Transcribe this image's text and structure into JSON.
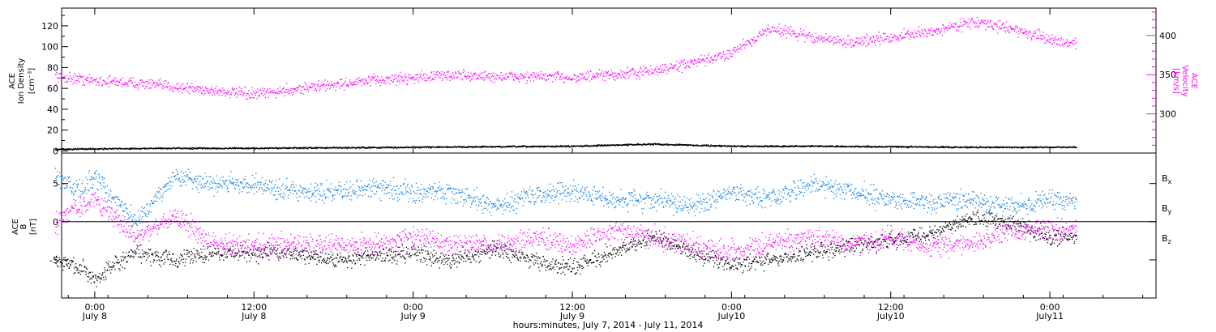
{
  "chart_data": [
    {
      "type": "scatter",
      "panel": "top",
      "ylabel_left": [
        "ACE",
        "Ion Density",
        "[cm⁻³]"
      ],
      "ylabel_right": [
        "ACE",
        "Velocity",
        "[km/s]"
      ],
      "ylim_left": [
        -2,
        137
      ],
      "ylim_right": [
        250,
        435
      ],
      "yticks_left": [
        "0",
        "20",
        "40",
        "60",
        "80",
        "100",
        "120"
      ],
      "yticks_right": [
        "300",
        "350",
        "400"
      ],
      "series": [
        {
          "key": "density",
          "color": "#000000",
          "axis": "left",
          "x_hours": [
            -3,
            0,
            6,
            12,
            18,
            24,
            30,
            36,
            42,
            48,
            54,
            60,
            66,
            74
          ],
          "y": [
            2,
            2.5,
            3,
            3,
            3.5,
            4,
            4.5,
            5,
            7,
            5,
            5,
            4.5,
            4,
            4
          ]
        },
        {
          "key": "velocity",
          "color": "#ff00ff",
          "axis": "right",
          "x_hours": [
            -3,
            0,
            3,
            6,
            9,
            12,
            15,
            18,
            21,
            24,
            27,
            30,
            33,
            36,
            39,
            42,
            45,
            47.5,
            48.5,
            51,
            54,
            57,
            60,
            63,
            66,
            69,
            72,
            74
          ],
          "y": [
            348,
            343,
            340,
            335,
            330,
            325,
            332,
            338,
            343,
            347,
            350,
            348,
            348,
            347,
            350,
            355,
            365,
            375,
            385,
            410,
            398,
            392,
            398,
            405,
            418,
            410,
            395,
            390
          ]
        }
      ]
    },
    {
      "type": "scatter",
      "panel": "bottom",
      "ylabel_left": [
        "ACE",
        "B",
        "[nT]"
      ],
      "ylim": [
        -10,
        9
      ],
      "yticks": [
        "-5",
        "0",
        "5"
      ],
      "series": [
        {
          "key": "Bx",
          "color": "#000000",
          "x_hours": [
            -3,
            -1,
            0,
            3,
            6,
            9,
            12,
            15,
            18,
            21,
            24,
            27,
            30,
            33,
            36,
            39,
            42,
            45,
            48,
            51,
            54,
            57,
            60,
            63,
            66,
            69,
            72,
            74
          ],
          "y": [
            -5,
            -6,
            -7.5,
            -4,
            -5,
            -4,
            -4,
            -4,
            -5,
            -4.5,
            -4,
            -5,
            -3.5,
            -5,
            -6,
            -4,
            -2,
            -4,
            -5.5,
            -5,
            -4,
            -3,
            -2.5,
            -1.5,
            0.5,
            0,
            -2,
            -2
          ]
        },
        {
          "key": "By",
          "color": "#1080e0",
          "x_hours": [
            -3,
            -1,
            0,
            3,
            6,
            9,
            12,
            15,
            18,
            21,
            24,
            27,
            30,
            33,
            36,
            39,
            42,
            45,
            48,
            51,
            54,
            57,
            60,
            63,
            66,
            69,
            72,
            74
          ],
          "y": [
            6,
            4,
            6,
            0,
            6,
            5,
            5,
            4,
            4,
            4.5,
            4,
            4,
            2,
            3.5,
            4,
            3,
            3,
            2,
            4,
            3,
            5,
            4,
            3,
            2.5,
            3,
            2,
            3,
            2.5
          ]
        },
        {
          "key": "Bz",
          "color": "#ff00ff",
          "x_hours": [
            -3,
            -1,
            0,
            3,
            6,
            9,
            12,
            15,
            18,
            21,
            24,
            27,
            30,
            33,
            36,
            39,
            42,
            45,
            48,
            51,
            54,
            57,
            60,
            63,
            66,
            69,
            72,
            74
          ],
          "y": [
            0,
            2,
            3,
            -2,
            1,
            -3,
            -3,
            -3,
            -3,
            -3,
            -2,
            -3,
            -3,
            -2,
            -3,
            -1,
            -2,
            -3,
            -4,
            -3,
            -2,
            -3,
            -2,
            -3,
            -3,
            -1,
            -1,
            -1
          ]
        }
      ],
      "legend": [
        {
          "base": "B",
          "sub": "x",
          "color": "#000000"
        },
        {
          "base": "B",
          "sub": "y",
          "color": "#1080e0"
        },
        {
          "base": "B",
          "sub": "z",
          "color": "#ff00ff"
        }
      ]
    }
  ],
  "x_axis": {
    "range_hours": [
      -2.5,
      80
    ],
    "ticks": [
      {
        "hour": 0,
        "time": "0:00",
        "date": "July 8"
      },
      {
        "hour": 12,
        "time": "12:00",
        "date": "July 8"
      },
      {
        "hour": 24,
        "time": "0:00",
        "date": "July 9"
      },
      {
        "hour": 36,
        "time": "12:00",
        "date": "July 9"
      },
      {
        "hour": 48,
        "time": "0:00",
        "date": "July10"
      },
      {
        "hour": 60,
        "time": "12:00",
        "date": "July10"
      },
      {
        "hour": 72,
        "time": "0:00",
        "date": "July11"
      }
    ],
    "xlabel": "hours:minutes, July  7, 2014 - July 11, 2014"
  },
  "colors": {
    "black": "#000000",
    "magenta": "#ff00ff",
    "blue": "#1080e0"
  }
}
